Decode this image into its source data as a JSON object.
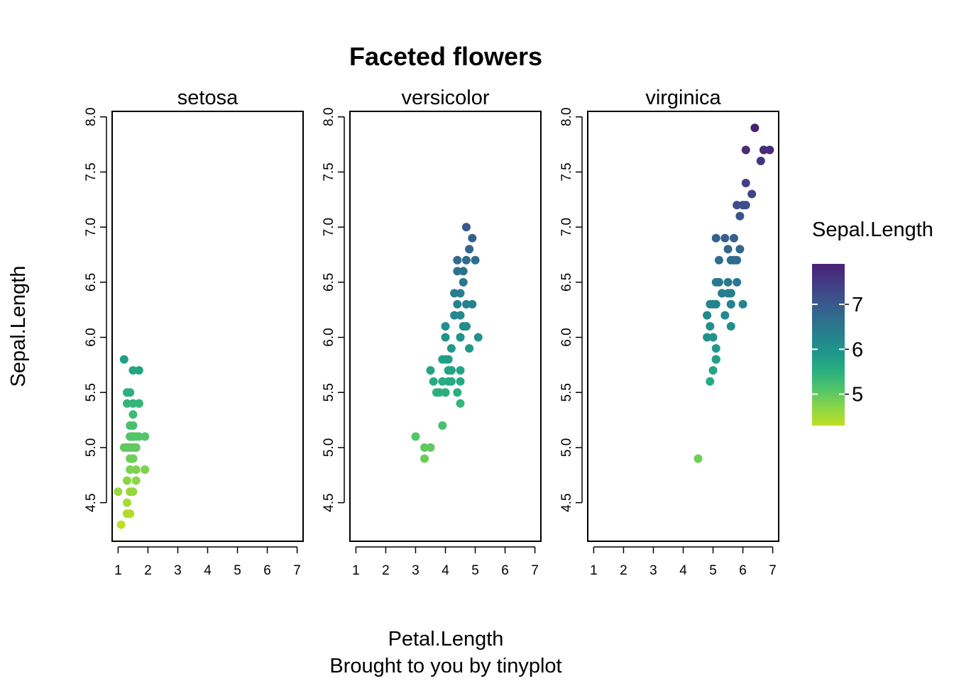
{
  "chart_data": {
    "type": "scatter",
    "title": "Faceted flowers",
    "xlabel": "Petal.Length",
    "caption": "Brought to you by tinyplot",
    "ylabel": "Sepal.Length",
    "xlim": [
      0.8,
      7.2
    ],
    "ylim": [
      4.15,
      8.05
    ],
    "x_ticks": [
      1,
      2,
      3,
      4,
      5,
      6,
      7
    ],
    "y_ticks": [
      4.5,
      5.0,
      5.5,
      6.0,
      6.5,
      7.0,
      7.5,
      8.0
    ],
    "x_tick_labels": [
      "1",
      "2",
      "3",
      "4",
      "5",
      "6",
      "7"
    ],
    "y_tick_labels": [
      "4.5",
      "5.0",
      "5.5",
      "6.0",
      "6.5",
      "7.0",
      "7.5",
      "8.0"
    ],
    "color_by": "Sepal.Length",
    "palette": "viridis (reversed)",
    "legend": {
      "title": "Sepal.Length",
      "position": "right",
      "range": [
        4.3,
        7.9
      ],
      "ticks": [
        5,
        6,
        7
      ],
      "tick_labels": [
        "5",
        "6",
        "7"
      ],
      "colors": [
        "#bddf26",
        "#8bd646",
        "#52c569",
        "#2ab07f",
        "#1f988b",
        "#25838e",
        "#2f6c8e",
        "#3a548c",
        "#443a83",
        "#482173"
      ]
    },
    "facets": [
      {
        "name": "setosa",
        "points": [
          [
            1.4,
            5.1
          ],
          [
            1.4,
            4.9
          ],
          [
            1.3,
            4.7
          ],
          [
            1.5,
            4.6
          ],
          [
            1.4,
            5.0
          ],
          [
            1.7,
            5.4
          ],
          [
            1.4,
            4.6
          ],
          [
            1.5,
            5.0
          ],
          [
            1.4,
            4.4
          ],
          [
            1.5,
            4.9
          ],
          [
            1.5,
            5.4
          ],
          [
            1.6,
            4.8
          ],
          [
            1.4,
            4.8
          ],
          [
            1.1,
            4.3
          ],
          [
            1.2,
            5.8
          ],
          [
            1.5,
            5.7
          ],
          [
            1.3,
            5.4
          ],
          [
            1.4,
            5.1
          ],
          [
            1.7,
            5.7
          ],
          [
            1.5,
            5.1
          ],
          [
            1.7,
            5.4
          ],
          [
            1.5,
            5.1
          ],
          [
            1.0,
            4.6
          ],
          [
            1.7,
            5.1
          ],
          [
            1.9,
            4.8
          ],
          [
            1.6,
            5.0
          ],
          [
            1.6,
            5.0
          ],
          [
            1.5,
            5.2
          ],
          [
            1.4,
            5.2
          ],
          [
            1.6,
            4.7
          ],
          [
            1.6,
            4.8
          ],
          [
            1.5,
            5.4
          ],
          [
            1.5,
            5.2
          ],
          [
            1.4,
            5.5
          ],
          [
            1.5,
            4.9
          ],
          [
            1.2,
            5.0
          ],
          [
            1.3,
            5.5
          ],
          [
            1.4,
            4.9
          ],
          [
            1.3,
            4.4
          ],
          [
            1.5,
            5.1
          ],
          [
            1.3,
            5.0
          ],
          [
            1.3,
            4.5
          ],
          [
            1.3,
            4.4
          ],
          [
            1.6,
            5.0
          ],
          [
            1.9,
            5.1
          ],
          [
            1.4,
            4.8
          ],
          [
            1.6,
            5.1
          ],
          [
            1.4,
            4.6
          ],
          [
            1.5,
            5.3
          ],
          [
            1.4,
            5.0
          ]
        ]
      },
      {
        "name": "versicolor",
        "points": [
          [
            4.7,
            7.0
          ],
          [
            4.5,
            6.4
          ],
          [
            4.9,
            6.9
          ],
          [
            4.0,
            5.5
          ],
          [
            4.6,
            6.5
          ],
          [
            4.5,
            5.7
          ],
          [
            4.7,
            6.3
          ],
          [
            3.3,
            4.9
          ],
          [
            4.6,
            6.6
          ],
          [
            3.9,
            5.2
          ],
          [
            3.5,
            5.0
          ],
          [
            4.2,
            5.9
          ],
          [
            4.0,
            6.0
          ],
          [
            4.7,
            6.1
          ],
          [
            3.6,
            5.6
          ],
          [
            4.4,
            6.7
          ],
          [
            4.5,
            5.6
          ],
          [
            4.1,
            5.8
          ],
          [
            4.5,
            6.2
          ],
          [
            3.9,
            5.6
          ],
          [
            4.8,
            5.9
          ],
          [
            4.0,
            6.1
          ],
          [
            4.9,
            6.3
          ],
          [
            4.7,
            6.1
          ],
          [
            4.3,
            6.4
          ],
          [
            4.4,
            6.6
          ],
          [
            4.8,
            6.8
          ],
          [
            5.0,
            6.7
          ],
          [
            4.5,
            6.0
          ],
          [
            3.5,
            5.7
          ],
          [
            3.8,
            5.5
          ],
          [
            3.7,
            5.5
          ],
          [
            3.9,
            5.8
          ],
          [
            5.1,
            6.0
          ],
          [
            4.5,
            5.4
          ],
          [
            4.5,
            6.0
          ],
          [
            4.7,
            6.7
          ],
          [
            4.4,
            6.3
          ],
          [
            4.1,
            5.6
          ],
          [
            4.0,
            5.5
          ],
          [
            4.4,
            5.5
          ],
          [
            4.6,
            6.1
          ],
          [
            4.0,
            5.8
          ],
          [
            3.3,
            5.0
          ],
          [
            4.2,
            5.6
          ],
          [
            4.2,
            5.7
          ],
          [
            4.2,
            5.7
          ],
          [
            4.3,
            6.2
          ],
          [
            3.0,
            5.1
          ],
          [
            4.1,
            5.7
          ]
        ]
      },
      {
        "name": "virginica",
        "points": [
          [
            6.0,
            6.3
          ],
          [
            5.1,
            5.8
          ],
          [
            5.9,
            7.1
          ],
          [
            5.6,
            6.3
          ],
          [
            5.8,
            6.5
          ],
          [
            6.6,
            7.6
          ],
          [
            4.5,
            4.9
          ],
          [
            6.3,
            7.3
          ],
          [
            5.8,
            6.7
          ],
          [
            6.1,
            7.2
          ],
          [
            5.1,
            6.5
          ],
          [
            5.3,
            6.4
          ],
          [
            5.5,
            6.8
          ],
          [
            5.0,
            5.7
          ],
          [
            5.1,
            5.8
          ],
          [
            5.3,
            6.4
          ],
          [
            5.5,
            6.5
          ],
          [
            6.7,
            7.7
          ],
          [
            6.9,
            7.7
          ],
          [
            5.0,
            6.0
          ],
          [
            5.7,
            6.9
          ],
          [
            4.9,
            5.6
          ],
          [
            6.7,
            7.7
          ],
          [
            4.9,
            6.3
          ],
          [
            5.7,
            6.7
          ],
          [
            6.0,
            7.2
          ],
          [
            4.8,
            6.2
          ],
          [
            4.9,
            6.1
          ],
          [
            5.6,
            6.4
          ],
          [
            5.8,
            7.2
          ],
          [
            6.1,
            7.4
          ],
          [
            6.4,
            7.9
          ],
          [
            5.6,
            6.4
          ],
          [
            5.1,
            6.3
          ],
          [
            5.6,
            6.1
          ],
          [
            6.1,
            7.7
          ],
          [
            5.6,
            6.3
          ],
          [
            5.5,
            6.4
          ],
          [
            4.8,
            6.0
          ],
          [
            5.4,
            6.9
          ],
          [
            5.6,
            6.7
          ],
          [
            5.1,
            6.9
          ],
          [
            5.1,
            5.8
          ],
          [
            5.9,
            6.8
          ],
          [
            5.7,
            6.7
          ],
          [
            5.2,
            6.7
          ],
          [
            5.0,
            6.3
          ],
          [
            5.2,
            6.5
          ],
          [
            5.4,
            6.2
          ],
          [
            5.1,
            5.9
          ]
        ]
      }
    ]
  }
}
